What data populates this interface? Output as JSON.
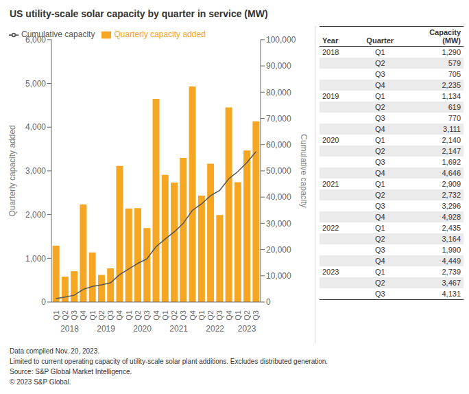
{
  "chart_data": [
    {
      "type": "bar",
      "title": "US utility-scale solar capacity by quarter in service (MW)",
      "categories": [
        "Q1",
        "Q2",
        "Q3",
        "Q4",
        "Q1",
        "Q2",
        "Q3",
        "Q4",
        "Q1",
        "Q2",
        "Q3",
        "Q4",
        "Q1",
        "Q2",
        "Q3",
        "Q4",
        "Q1",
        "Q2",
        "Q3",
        "Q4",
        "Q1",
        "Q2",
        "Q3"
      ],
      "years": [
        2018,
        2018,
        2018,
        2018,
        2019,
        2019,
        2019,
        2019,
        2020,
        2020,
        2020,
        2020,
        2021,
        2021,
        2021,
        2021,
        2022,
        2022,
        2022,
        2022,
        2023,
        2023,
        2023
      ],
      "series": [
        {
          "name": "Quarterly capacity added",
          "type": "bar",
          "color": "#F5A623",
          "values": [
            1290,
            579,
            705,
            2235,
            1134,
            619,
            770,
            3111,
            2140,
            2147,
            1692,
            4646,
            2909,
            2732,
            3296,
            4928,
            2435,
            3164,
            1990,
            4449,
            2739,
            3467,
            4131
          ]
        },
        {
          "name": "Cumulative capacity",
          "type": "line",
          "color": "#555555",
          "axis": "y2",
          "values": [
            1290,
            1869,
            2574,
            4809,
            5943,
            6562,
            7332,
            10443,
            12583,
            14730,
            16422,
            21068,
            23977,
            26709,
            30005,
            34933,
            37368,
            40532,
            42522,
            46971,
            49710,
            53177,
            57308
          ]
        }
      ],
      "ylabel": "Quarterly capacity added",
      "y2label": "Cumulative capacity",
      "ylim": [
        0,
        6000
      ],
      "yticks": [
        0,
        {
          "value": 1000,
          "label": "1,000"
        },
        {
          "value": 2000,
          "label": "2,000"
        },
        {
          "value": 3000,
          "label": "3,000"
        },
        {
          "value": 4000,
          "label": "4,000"
        },
        {
          "value": 5000,
          "label": "5,000"
        },
        {
          "value": 6000,
          "label": "6,000"
        }
      ],
      "y2lim": [
        0,
        100000
      ],
      "y2ticks": [
        0,
        {
          "value": 10000,
          "label": "10,000"
        },
        {
          "value": 20000,
          "label": "20,000"
        },
        {
          "value": 30000,
          "label": "30,000"
        },
        {
          "value": 40000,
          "label": "40,000"
        },
        {
          "value": 50000,
          "label": "50,000"
        },
        {
          "value": 60000,
          "label": "60,000"
        },
        {
          "value": 70000,
          "label": "70,000"
        },
        {
          "value": 80000,
          "label": "80,000"
        },
        {
          "value": 90000,
          "label": "90,000"
        },
        {
          "value": 100000,
          "label": "100,000"
        }
      ],
      "grid": false,
      "legend": "upper left",
      "footnotes": [
        "Data compiled Nov. 20, 2023.",
        "Limited to current operating capacity of utility-scale solar plant additions. Excludes distributed generation.",
        "Source: S&P Global Market Intelligence.",
        "© 2023 S&P Global."
      ]
    },
    {
      "type": "table",
      "columns": [
        "Year",
        "Quarter",
        "Capacity\n(MW)"
      ],
      "rows": [
        [
          "2018",
          "Q1",
          "1,290"
        ],
        [
          null,
          "Q2",
          "579"
        ],
        [
          null,
          "Q3",
          "705"
        ],
        [
          null,
          "Q4",
          "2,235"
        ],
        [
          "2019",
          "Q1",
          "1,134"
        ],
        [
          null,
          "Q2",
          "619"
        ],
        [
          null,
          "Q3",
          "770"
        ],
        [
          null,
          "Q4",
          "3,111"
        ],
        [
          "2020",
          "Q1",
          "2,140"
        ],
        [
          null,
          "Q2",
          "2,147"
        ],
        [
          null,
          "Q3",
          "1,692"
        ],
        [
          null,
          "Q4",
          "4,646"
        ],
        [
          "2021",
          "Q1",
          "2,909"
        ],
        [
          null,
          "Q2",
          "2,732"
        ],
        [
          null,
          "Q3",
          "3,296"
        ],
        [
          null,
          "Q4",
          "4,928"
        ],
        [
          "2022",
          "Q1",
          "2,435"
        ],
        [
          null,
          "Q2",
          "3,164"
        ],
        [
          null,
          "Q3",
          "1,990"
        ],
        [
          null,
          "Q4",
          "4,449"
        ],
        [
          "2023",
          "Q1",
          "2,739"
        ],
        [
          null,
          "Q2",
          "3,467"
        ],
        [
          null,
          "Q3",
          "4,131"
        ]
      ]
    }
  ]
}
